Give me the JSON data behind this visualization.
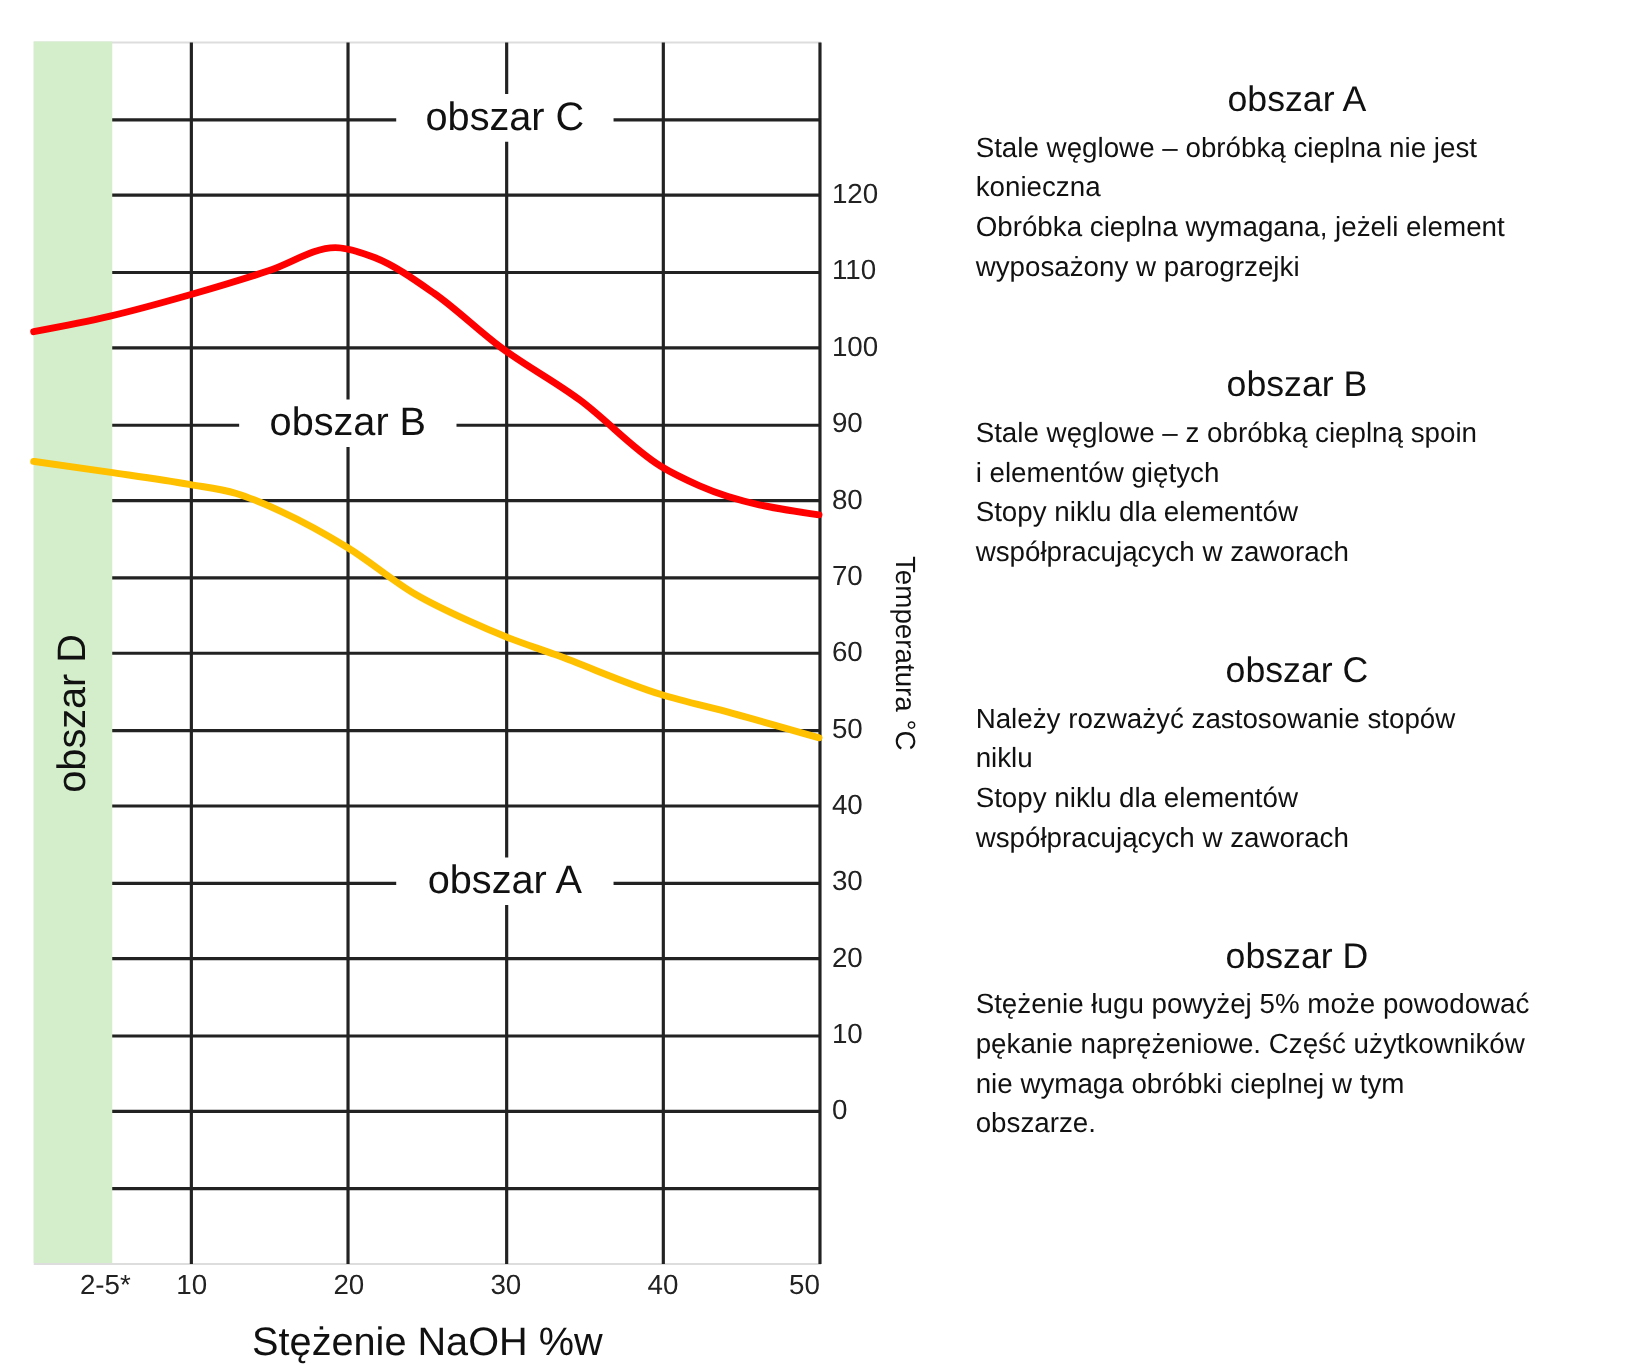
{
  "chart_data": [
    {
      "type": "line",
      "xlabel": "Stężenie NaOH %w",
      "ylabel": "Temperatura °C",
      "series": [
        {
          "color": "#ff0000",
          "x": [
            0,
            4.8,
            9.9,
            15,
            19.2,
            21.7,
            25.5,
            29.7,
            34.8,
            39.9,
            42.4,
            50
          ],
          "values": [
            102,
            104,
            106.8,
            110,
            113,
            111.7,
            107,
            100,
            93,
            84.4,
            81.8,
            78
          ]
        },
        {
          "color": "#ffc000",
          "x": [
            0,
            4.8,
            9.9,
            12.9,
            15.8,
            20,
            24.3,
            27.6,
            30.1,
            33.2,
            39.9,
            44.5,
            50
          ],
          "values": [
            85,
            83.6,
            82,
            80.8,
            78.4,
            73.7,
            67.6,
            64.2,
            62,
            59.7,
            54.5,
            52,
            48.8
          ]
        }
      ],
      "xlim": [
        0,
        50
      ],
      "xticks": [
        {
          "value": 4.5,
          "label": "2-5*"
        },
        10,
        20,
        30,
        40,
        50
      ],
      "ylim": [
        -20,
        140
      ],
      "yticks": [
        {
          "value": -10,
          "label": null
        },
        0,
        10,
        20,
        30,
        40,
        50,
        60,
        70,
        80,
        90,
        100,
        110,
        120,
        {
          "value": 130,
          "label": null
        }
      ],
      "bands": [
        {
          "axis": "x",
          "from": 0,
          "to": 5,
          "label": "obszar D",
          "color": "#d4eecb"
        }
      ],
      "annotations": [
        "obszar C",
        "obszar B",
        "obszar A"
      ],
      "grid": true,
      "marker": "none",
      "line_style": "solid"
    },
    {
      "type": "other",
      "annotations": [
        "obszar A\nStale węglowe – obróbką cieplna nie jest konieczna\nObróbka cieplna wymagana, jeżeli element wyposażony w parogrzejki",
        "obszar B\nStale węglowe – z obróbką cieplną spoin i elementów giętych\nStopy niklu dla elementów współpracujących w zaworach",
        "obszar C\nNależy rozważyć zastosowanie stopów niklu\nStopy niklu dla elementów współpracujących w zaworach",
        "obszar D\nStężenie ługu powyżej 5% może powodować pękanie naprężeniowe. Część użytkowników nie wymaga obróbki cieplnej w tym obszarze."
      ]
    }
  ]
}
